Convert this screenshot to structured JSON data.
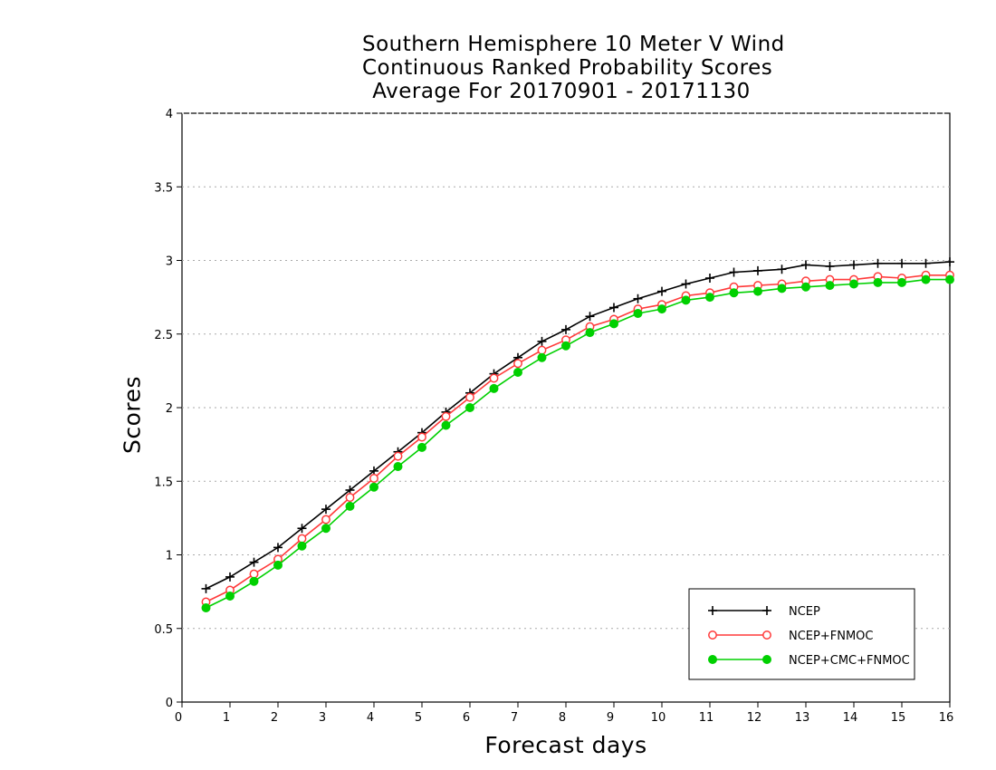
{
  "chart_data": {
    "type": "line",
    "title": [
      "Southern Hemisphere 10 Meter V Wind",
      "Continuous Ranked Probability Scores",
      "Average For 20170901 - 20171130"
    ],
    "xlabel": "Forecast days",
    "ylabel": "Scores",
    "xlim": [
      0,
      16
    ],
    "ylim": [
      0,
      4
    ],
    "xticks": [
      "0",
      "1",
      "2",
      "3",
      "4",
      "5",
      "6",
      "7",
      "8",
      "9",
      "10",
      "11",
      "12",
      "13",
      "14",
      "15",
      "16"
    ],
    "yticks": [
      "0",
      "0.5",
      "1",
      "1.5",
      "2",
      "2.5",
      "3",
      "3.5",
      "4"
    ],
    "grid": true,
    "legend_position": "bottom-right",
    "x": [
      0.5,
      1,
      1.5,
      2,
      2.5,
      3,
      3.5,
      4,
      4.5,
      5,
      5.5,
      6,
      6.5,
      7,
      7.5,
      8,
      8.5,
      9,
      9.5,
      10,
      10.5,
      11,
      11.5,
      12,
      12.5,
      13,
      13.5,
      14,
      14.5,
      15,
      15.5,
      16
    ],
    "series": [
      {
        "name": "NCEP",
        "color": "#000000",
        "marker": "plus",
        "values": [
          0.77,
          0.85,
          0.95,
          1.05,
          1.18,
          1.31,
          1.44,
          1.57,
          1.7,
          1.83,
          1.97,
          2.1,
          2.23,
          2.34,
          2.45,
          2.53,
          2.62,
          2.68,
          2.74,
          2.79,
          2.84,
          2.88,
          2.92,
          2.93,
          2.94,
          2.97,
          2.96,
          2.97,
          2.98,
          2.98,
          2.98,
          2.99
        ]
      },
      {
        "name": "NCEP+FNMOC",
        "color": "#ff3a3a",
        "marker": "open-circle",
        "values": [
          0.68,
          0.76,
          0.87,
          0.97,
          1.11,
          1.24,
          1.39,
          1.52,
          1.67,
          1.8,
          1.94,
          2.07,
          2.2,
          2.3,
          2.39,
          2.46,
          2.55,
          2.6,
          2.67,
          2.7,
          2.76,
          2.78,
          2.82,
          2.83,
          2.84,
          2.86,
          2.87,
          2.87,
          2.89,
          2.88,
          2.9,
          2.9
        ]
      },
      {
        "name": "NCEP+CMC+FNMOC",
        "color": "#00d000",
        "marker": "filled-circle",
        "values": [
          0.64,
          0.72,
          0.82,
          0.93,
          1.06,
          1.18,
          1.33,
          1.46,
          1.6,
          1.73,
          1.88,
          2.0,
          2.13,
          2.24,
          2.34,
          2.42,
          2.51,
          2.57,
          2.64,
          2.67,
          2.73,
          2.75,
          2.78,
          2.79,
          2.81,
          2.82,
          2.83,
          2.84,
          2.85,
          2.85,
          2.87,
          2.87
        ]
      }
    ]
  }
}
